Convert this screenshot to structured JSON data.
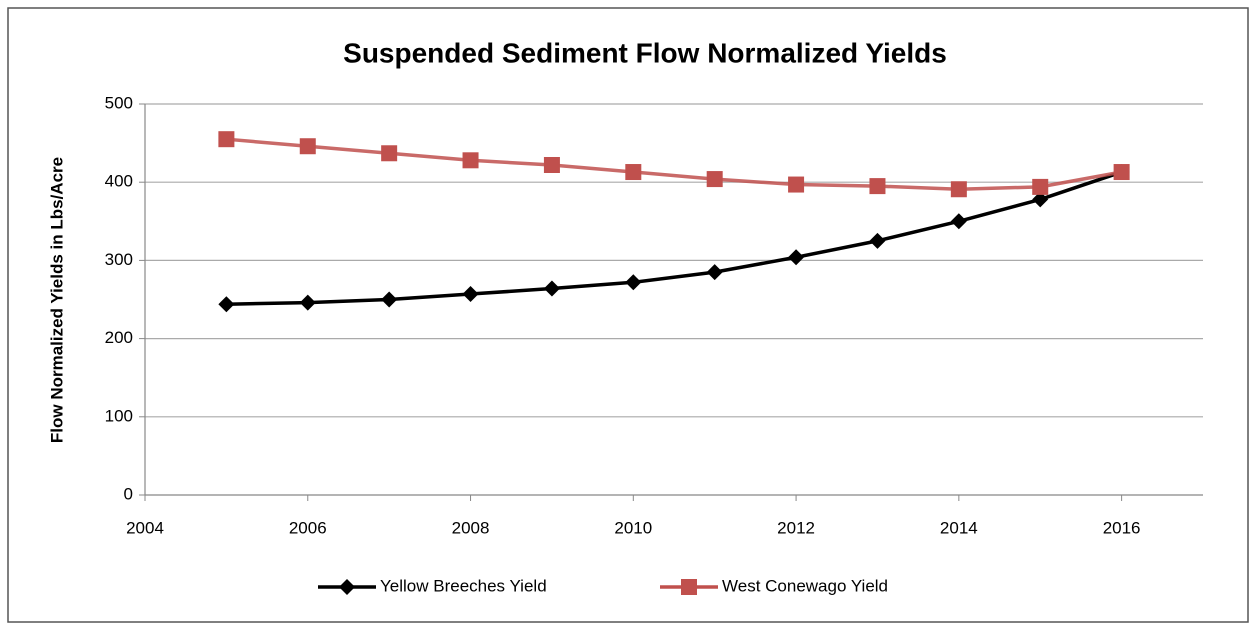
{
  "chart_data": {
    "type": "line",
    "title": "Suspended Sediment Flow Normalized Yields",
    "y_label": "Flow Normalized Yields in Lbs/Acre",
    "x": [
      2005,
      2006,
      2007,
      2008,
      2009,
      2010,
      2011,
      2012,
      2013,
      2014,
      2015,
      2016
    ],
    "series": [
      {
        "name": "Yellow Breeches Yield",
        "color": "#000000",
        "marker": "diamond",
        "values": [
          244,
          246,
          250,
          257,
          264,
          272,
          285,
          304,
          325,
          350,
          378,
          413
        ]
      },
      {
        "name": "West Conewago Yield",
        "color": "#c0504d",
        "marker": "square",
        "values": [
          455,
          446,
          437,
          428,
          422,
          413,
          404,
          397,
          395,
          391,
          394,
          413
        ]
      }
    ],
    "xlim": [
      2004,
      2017
    ],
    "xticks": [
      2004,
      2006,
      2008,
      2010,
      2012,
      2014,
      2016
    ],
    "ylim": [
      0,
      500
    ],
    "yticks": [
      0,
      100,
      200,
      300,
      400,
      500
    ],
    "grid": true,
    "legend": "bottom"
  }
}
